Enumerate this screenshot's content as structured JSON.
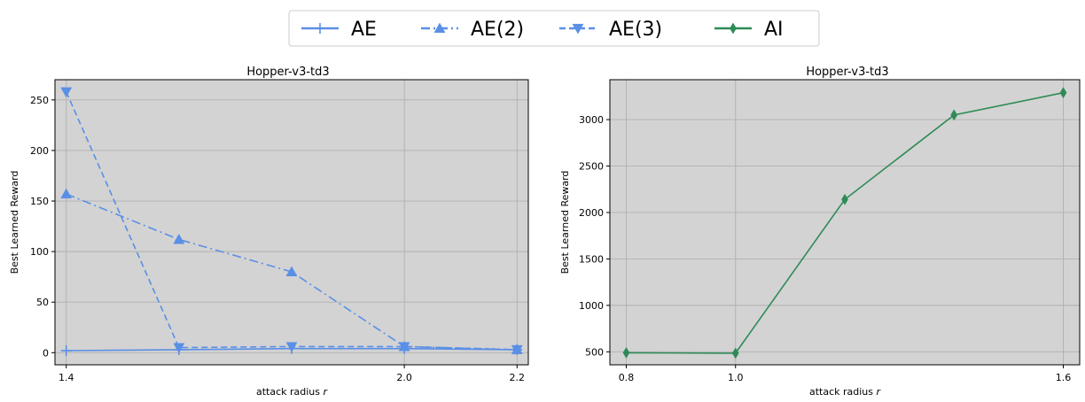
{
  "legend": [
    {
      "label": "AE",
      "color": "#5a8fe6",
      "dash": "",
      "marker": "plus"
    },
    {
      "label": "AE(2)",
      "color": "#5a8fe6",
      "dash": "10,4,2,4",
      "marker": "tri-up"
    },
    {
      "label": "AE(3)",
      "color": "#5a8fe6",
      "dash": "7,4",
      "marker": "tri-down"
    },
    {
      "label": "AI",
      "color": "#2e8b57",
      "dash": "",
      "marker": "diamond"
    }
  ],
  "chart_data": [
    {
      "type": "line",
      "title": "Hopper-v3-td3",
      "xlabel": "attack radius",
      "xlabel_var": "r",
      "ylabel": "Best Learned Reward",
      "x_ticks": [
        "1.4",
        "2.0",
        "2.2"
      ],
      "y_ticks": [
        "0",
        "50",
        "100",
        "150",
        "200",
        "250"
      ],
      "xlim": [
        1.38,
        2.22
      ],
      "ylim": [
        -12,
        270
      ],
      "grid": true,
      "series": [
        {
          "name": "AE",
          "color": "#5a8fe6",
          "dash": "",
          "marker": "plus",
          "x": [
            1.4,
            1.6,
            1.8,
            2.0,
            2.2
          ],
          "values": [
            2,
            3,
            4,
            4,
            3
          ]
        },
        {
          "name": "AE(2)",
          "color": "#5a8fe6",
          "dash": "10,4,2,4",
          "marker": "tri-up",
          "x": [
            1.4,
            1.6,
            1.8,
            2.0,
            2.2
          ],
          "values": [
            157,
            112,
            80,
            6,
            3
          ]
        },
        {
          "name": "AE(3)",
          "color": "#5a8fe6",
          "dash": "7,4",
          "marker": "tri-down",
          "x": [
            1.4,
            1.6,
            1.8,
            2.0,
            2.2
          ],
          "values": [
            258,
            5,
            6,
            6,
            3
          ]
        }
      ]
    },
    {
      "type": "line",
      "title": "Hopper-v3-td3",
      "xlabel": "attack radius",
      "xlabel_var": "r",
      "ylabel": "Best Learned Reward",
      "x_ticks": [
        "0.8",
        "1.0",
        "1.6"
      ],
      "y_ticks": [
        "500",
        "1000",
        "1500",
        "2000",
        "2500",
        "3000"
      ],
      "xlim": [
        0.77,
        1.63
      ],
      "ylim": [
        360,
        3430
      ],
      "grid": true,
      "series": [
        {
          "name": "AI",
          "color": "#2e8b57",
          "dash": "",
          "marker": "diamond",
          "x": [
            0.8,
            1.0,
            1.2,
            1.4,
            1.6
          ],
          "values": [
            490,
            485,
            2140,
            3050,
            3290
          ]
        }
      ]
    }
  ]
}
